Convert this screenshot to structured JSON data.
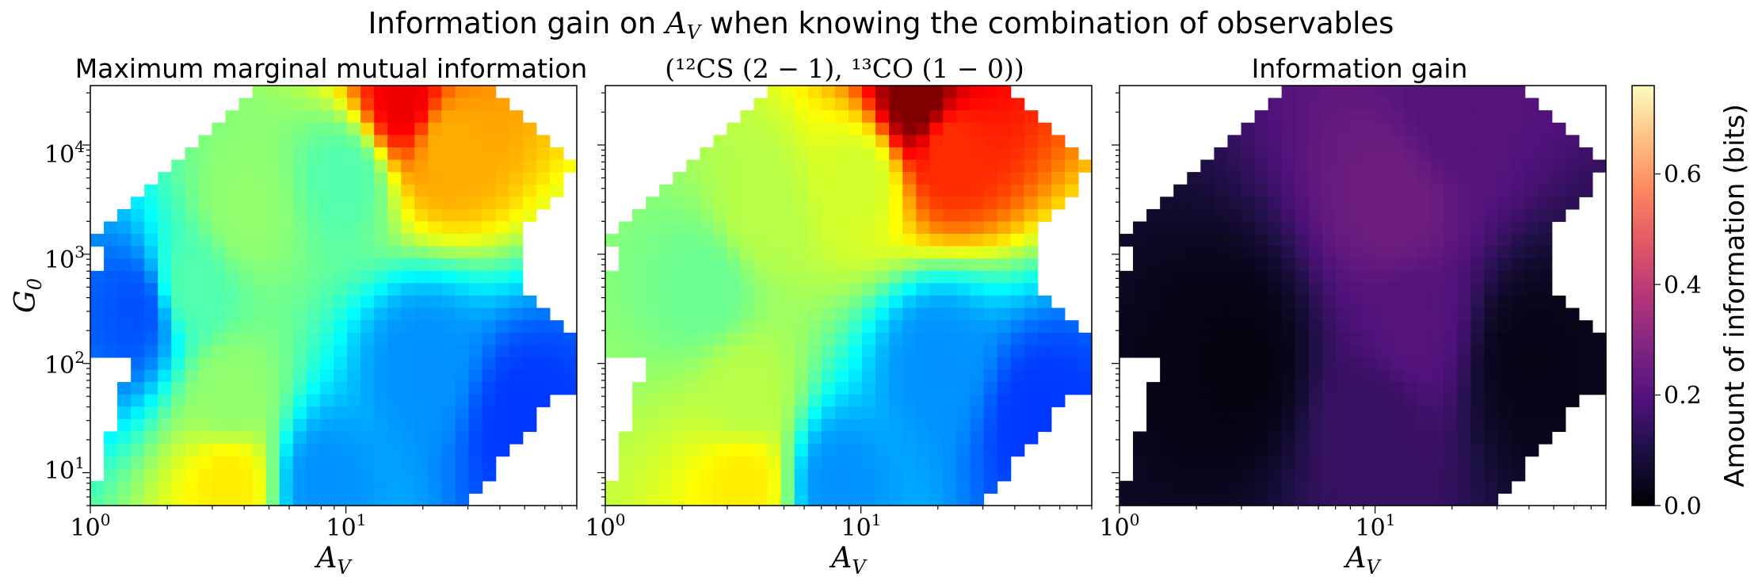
{
  "figure": {
    "suptitle_text": "Information gain on ",
    "suptitle_var": "A",
    "suptitle_var_sub": "V",
    "suptitle_rest": " when knowing the combination of observables",
    "colorbar_label": "Amount of information (bits)",
    "colormaps": {
      "left": "jet",
      "middle": "jet",
      "right": "magma"
    }
  },
  "panels": [
    {
      "title": "Maximum marginal mutual information",
      "ylabel": "G",
      "ylabel_sub": "0",
      "xlabel": "A",
      "xlabel_sub": "V"
    },
    {
      "title": "(¹²CS (2 − 1), ¹³CO (1 − 0))",
      "xlabel": "A",
      "xlabel_sub": "V"
    },
    {
      "title": "Information gain",
      "xlabel": "A",
      "xlabel_sub": "V"
    }
  ],
  "chart_data": [
    {
      "type": "heatmap",
      "title": "Maximum marginal mutual information",
      "xlabel": "A_V",
      "ylabel": "G_0",
      "xscale": "log",
      "yscale": "log",
      "xlim": [
        1,
        80
      ],
      "ylim": [
        5,
        35000
      ],
      "xticks": [
        "10^0",
        "10^1"
      ],
      "yticks": [
        "10^1",
        "10^2",
        "10^3",
        "10^4"
      ],
      "colormap": "jet",
      "approx_values": [
        {
          "x": 3.5,
          "y": 8,
          "value": 0.45
        },
        {
          "x": 3.5,
          "y": 50,
          "value": 0.35
        },
        {
          "x": 2.5,
          "y": 500,
          "value": 0.3
        },
        {
          "x": 4,
          "y": 2500,
          "value": 0.35
        },
        {
          "x": 10,
          "y": 5000,
          "value": 0.3
        },
        {
          "x": 17,
          "y": 25000,
          "value": 0.65
        },
        {
          "x": 25,
          "y": 10000,
          "value": 0.5
        },
        {
          "x": 8,
          "y": 8,
          "value": 0.15
        },
        {
          "x": 20,
          "y": 100,
          "value": 0.15
        },
        {
          "x": 50,
          "y": 30,
          "value": 0.08
        },
        {
          "x": 1.5,
          "y": 300,
          "value": 0.1
        }
      ]
    },
    {
      "type": "heatmap",
      "title": "(¹²CS (2 − 1), ¹³CO (1 − 0))",
      "xlabel": "A_V",
      "ylabel": "G_0",
      "xscale": "log",
      "yscale": "log",
      "xlim": [
        1,
        80
      ],
      "ylim": [
        5,
        35000
      ],
      "xticks": [
        "10^0",
        "10^1"
      ],
      "colormap": "jet",
      "approx_values": [
        {
          "x": 3.5,
          "y": 8,
          "value": 0.45
        },
        {
          "x": 3.5,
          "y": 50,
          "value": 0.38
        },
        {
          "x": 2.5,
          "y": 500,
          "value": 0.32
        },
        {
          "x": 4,
          "y": 2500,
          "value": 0.38
        },
        {
          "x": 10,
          "y": 5000,
          "value": 0.4
        },
        {
          "x": 17,
          "y": 25000,
          "value": 0.75
        },
        {
          "x": 22,
          "y": 10000,
          "value": 0.6
        },
        {
          "x": 8,
          "y": 8,
          "value": 0.15
        },
        {
          "x": 20,
          "y": 100,
          "value": 0.15
        },
        {
          "x": 50,
          "y": 30,
          "value": 0.08
        }
      ]
    },
    {
      "type": "heatmap",
      "title": "Information gain",
      "xlabel": "A_V",
      "xscale": "log",
      "yscale": "log",
      "xlim": [
        1,
        80
      ],
      "ylim": [
        5,
        35000
      ],
      "xticks": [
        "10^0",
        "10^1"
      ],
      "colormap": "magma",
      "colorbar": {
        "label": "Amount of information (bits)",
        "range": [
          0.0,
          0.76
        ],
        "ticks": [
          "0.0",
          "0.2",
          "0.4",
          "0.6"
        ]
      },
      "approx_values": [
        {
          "x": 12,
          "y": 3000,
          "value": 0.25
        },
        {
          "x": 14,
          "y": 200,
          "value": 0.2
        },
        {
          "x": 10,
          "y": 30,
          "value": 0.15
        },
        {
          "x": 20,
          "y": 20000,
          "value": 0.2
        },
        {
          "x": 3,
          "y": 100,
          "value": 0.02
        },
        {
          "x": 40,
          "y": 100,
          "value": 0.03
        }
      ]
    }
  ]
}
